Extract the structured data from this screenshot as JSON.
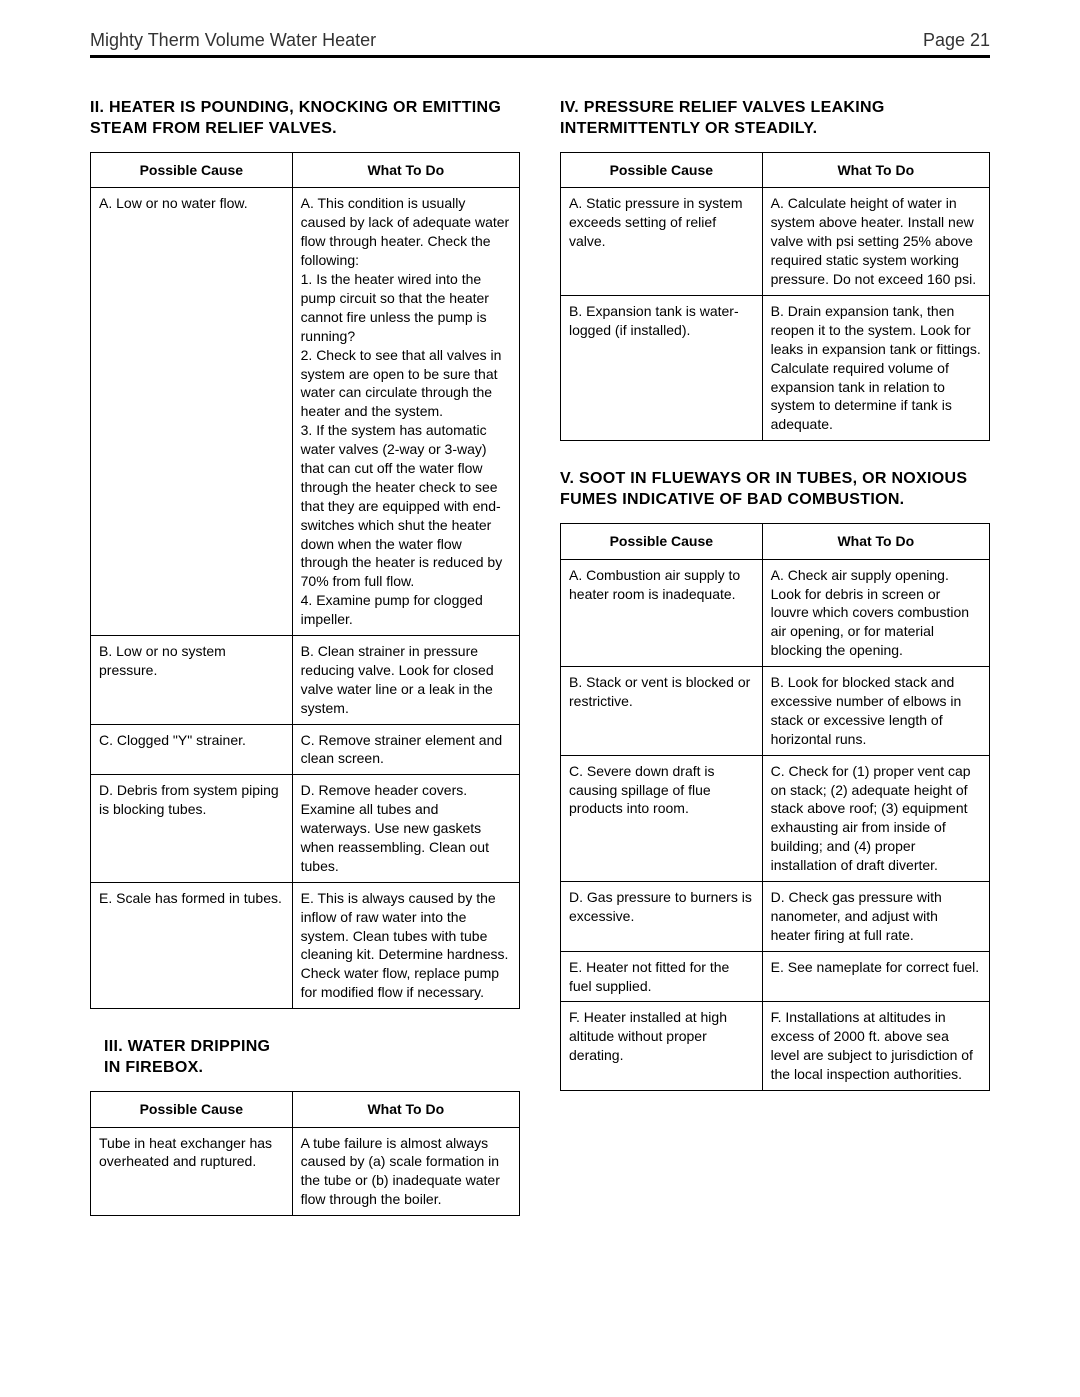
{
  "header": {
    "doc_title": "Mighty Therm Volume Water Heater",
    "page_label": "Page 21"
  },
  "table_headers": {
    "cause": "Possible Cause",
    "action": "What To Do"
  },
  "sections": {
    "II": {
      "heading": "II. HEATER IS POUNDING, KNOCKING OR EMITTING STEAM FROM RELIEF VALVES.",
      "rows": [
        {
          "cause": "A. Low or no water flow.",
          "action": "A. This condition is usually caused by lack of adequate water flow through heater. Check the following:\n1. Is the heater wired into the pump circuit so that the heater cannot fire unless the pump is running?\n2. Check to see that all valves in system are open to be sure that water can circulate through the heater and the system.\n3. If the system has automatic water valves (2-way or 3-way) that can cut off the water flow through the heater check to see that they are equipped with end-switches which shut the heater down when the water flow through the heater is reduced by 70% from full flow.\n4. Examine pump for clogged impeller."
        },
        {
          "cause": "B. Low or no system pressure.",
          "action": "B. Clean strainer in pressure reducing valve. Look for closed valve water line or a leak in the system."
        },
        {
          "cause": "C. Clogged \"Y\" strainer.",
          "action": "C. Remove strainer element and clean screen."
        },
        {
          "cause": "D. Debris from system piping is blocking tubes.",
          "action": "D. Remove header covers. Examine all tubes and waterways. Use new gaskets when reassembling. Clean out tubes."
        },
        {
          "cause": "E. Scale has formed in tubes.",
          "action": "E. This is always caused by the inflow of raw water into the system. Clean tubes with tube cleaning kit. Determine hardness. Check water flow, replace pump for modified flow if necessary."
        }
      ]
    },
    "III": {
      "heading_line1": "III.  WATER DRIPPING",
      "heading_line2": "IN FIREBOX.",
      "rows": [
        {
          "cause": "Tube in heat exchanger has overheated and ruptured.",
          "action": "A tube failure is almost always caused by (a) scale formation in the tube or (b) inadequate water flow through the boiler."
        }
      ]
    },
    "IV": {
      "heading": "IV. PRESSURE RELIEF VALVES LEAKING INTERMITTENTLY OR STEADILY.",
      "rows": [
        {
          "cause": "A. Static pressure in system exceeds setting of relief valve.",
          "action": "A. Calculate height of water in system above heater. Install new valve with psi setting 25% above required static system working pressure. Do not exceed 160 psi."
        },
        {
          "cause": "B. Expansion tank is water-logged (if installed).",
          "action": "B. Drain expansion tank, then reopen it to the system. Look for leaks in expansion tank or fittings. Calculate required volume of expansion tank in relation to system to determine if tank is adequate."
        }
      ]
    },
    "V": {
      "heading": "V.  SOOT IN FLUEWAYS OR IN TUBES, OR NOXIOUS FUMES INDICATIVE OF BAD COMBUSTION.",
      "rows": [
        {
          "cause": "A. Combustion air supply to heater room is inadequate.",
          "action": "A. Check air supply opening. Look for debris in screen or louvre which covers combustion air opening, or for material blocking the opening."
        },
        {
          "cause": "B. Stack or vent is blocked or restrictive.",
          "action": "B. Look for blocked stack and excessive number of elbows in stack or excessive length of horizontal runs."
        },
        {
          "cause": "C. Severe down draft is causing spillage of flue products into room.",
          "action": "C. Check for (1) proper vent cap on stack; (2) adequate height of stack above roof; (3) equipment exhausting air from inside of building; and (4) proper installation of draft diverter."
        },
        {
          "cause": "D. Gas pressure to burners is excessive.",
          "action": "D. Check gas pressure with nanometer, and adjust with heater firing at full rate."
        },
        {
          "cause": "E. Heater not fitted for the fuel supplied.",
          "action": "E. See nameplate for correct fuel."
        },
        {
          "cause": "F. Heater installed at high altitude without proper derating.",
          "action": "F. Installations at altitudes in excess of 2000 ft. above sea level are subject to jurisdiction of the local inspection authorities."
        }
      ]
    }
  }
}
